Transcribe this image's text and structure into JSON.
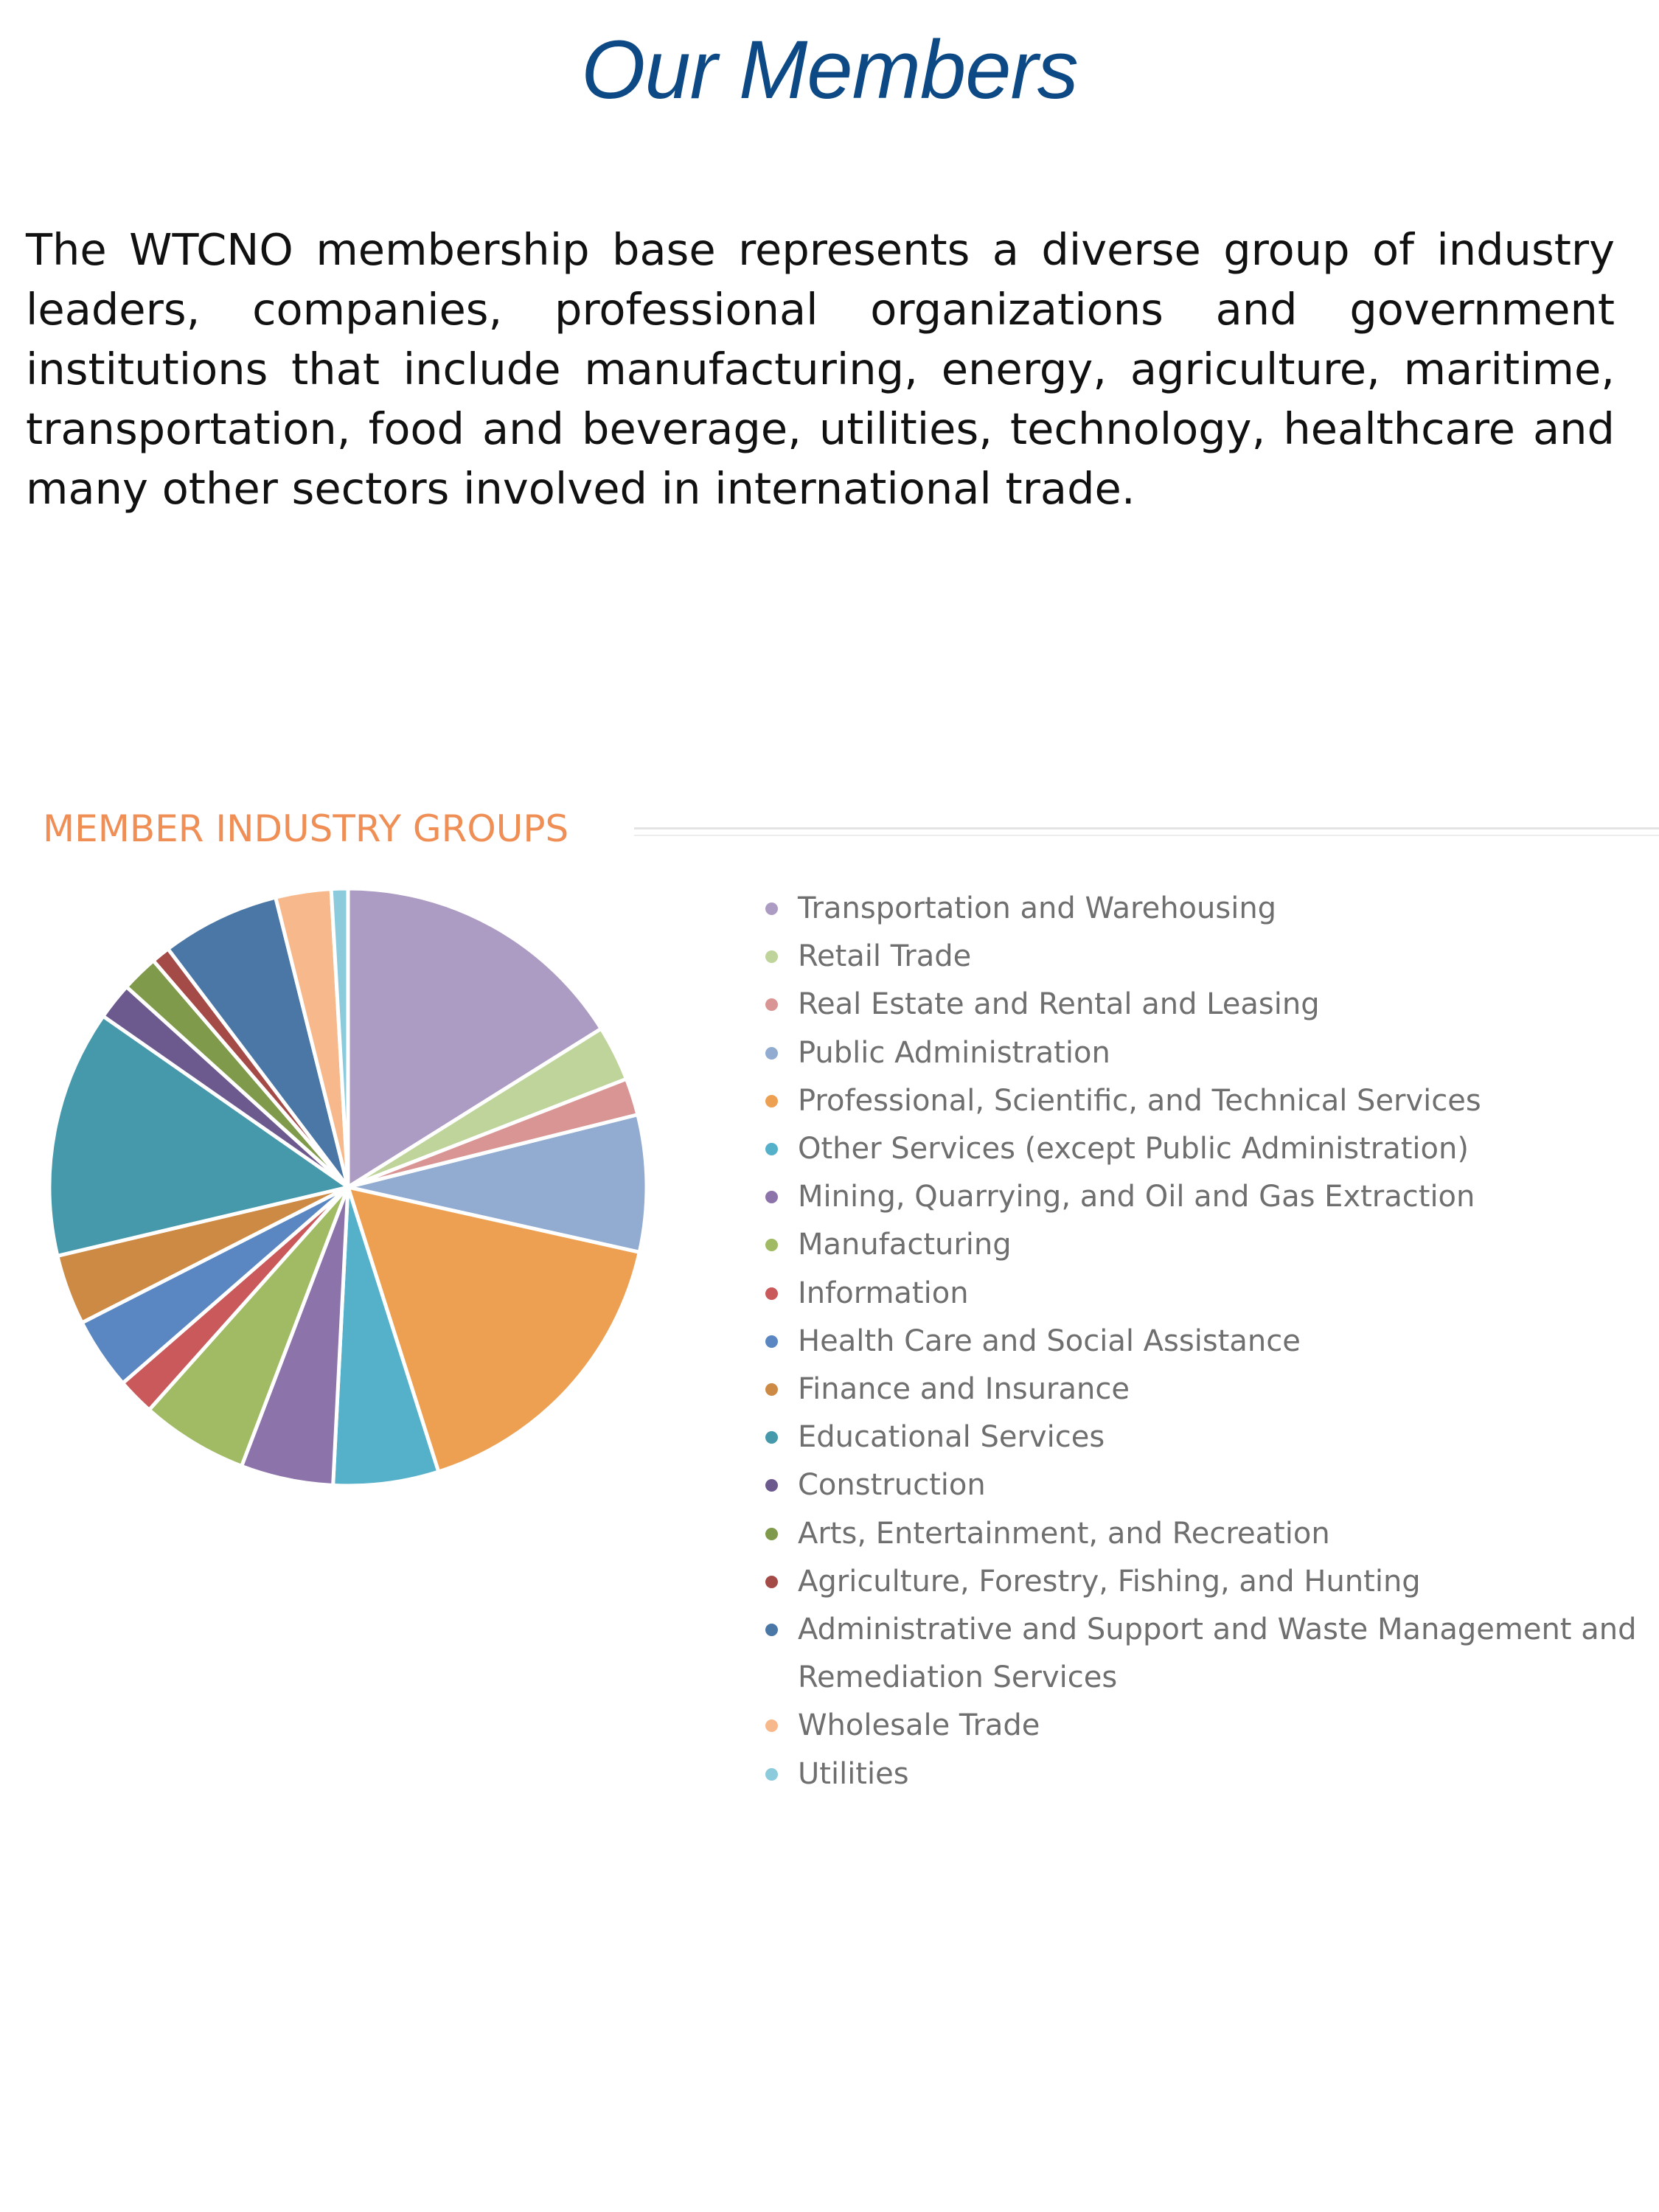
{
  "title": "Our Members",
  "intro": "The WTCNO membership base represents a diverse group of industry leaders, companies, professional organizations and government institutions that include manufacturing, energy, agriculture, maritime, transportation, food and beverage, utilities, technology, healthcare and many other sectors involved in international trade.",
  "chart_data": {
    "type": "pie",
    "title": "MEMBER INDUSTRY GROUPS",
    "legend_position": "right",
    "slices": [
      {
        "name": "Transportation and Warehousing",
        "value": 16.1,
        "color": "#ac9bc2"
      },
      {
        "name": "Retail Trade",
        "value": 3.0,
        "color": "#bed49a"
      },
      {
        "name": "Real Estate and Rental and Leasing",
        "value": 2.0,
        "color": "#d99594"
      },
      {
        "name": "Public Administration",
        "value": 7.4,
        "color": "#91acd0"
      },
      {
        "name": "Professional, Scientific, and Technical Services",
        "value": 16.6,
        "color": "#eda052"
      },
      {
        "name": "Other Services (except Public Administration)",
        "value": 5.7,
        "color": "#55b0c9"
      },
      {
        "name": "Mining, Quarrying, and Oil and Gas Extraction",
        "value": 5.0,
        "color": "#8c73aa"
      },
      {
        "name": "Manufacturing",
        "value": 5.8,
        "color": "#a0bb64"
      },
      {
        "name": "Information",
        "value": 2.0,
        "color": "#c9595a"
      },
      {
        "name": "Health Care and Social Assistance",
        "value": 3.9,
        "color": "#5a87c1"
      },
      {
        "name": "Finance and Insurance",
        "value": 3.8,
        "color": "#cc8a45"
      },
      {
        "name": "Educational Services",
        "value": 13.4,
        "color": "#4699ab"
      },
      {
        "name": "Construction",
        "value": 2.0,
        "color": "#6c5a8e"
      },
      {
        "name": "Arts, Entertainment, and Recreation",
        "value": 2.0,
        "color": "#7f9a4b"
      },
      {
        "name": "Agriculture, Forestry, Fishing, and Hunting",
        "value": 1.0,
        "color": "#a54b47"
      },
      {
        "name": "Administrative and Support and Waste Management and Remediation Services",
        "value": 6.4,
        "color": "#4a77a6"
      },
      {
        "name": "Wholesale Trade",
        "value": 3.0,
        "color": "#f7b98c"
      },
      {
        "name": "Utilities",
        "value": 0.9,
        "color": "#8ccbdc"
      }
    ]
  }
}
